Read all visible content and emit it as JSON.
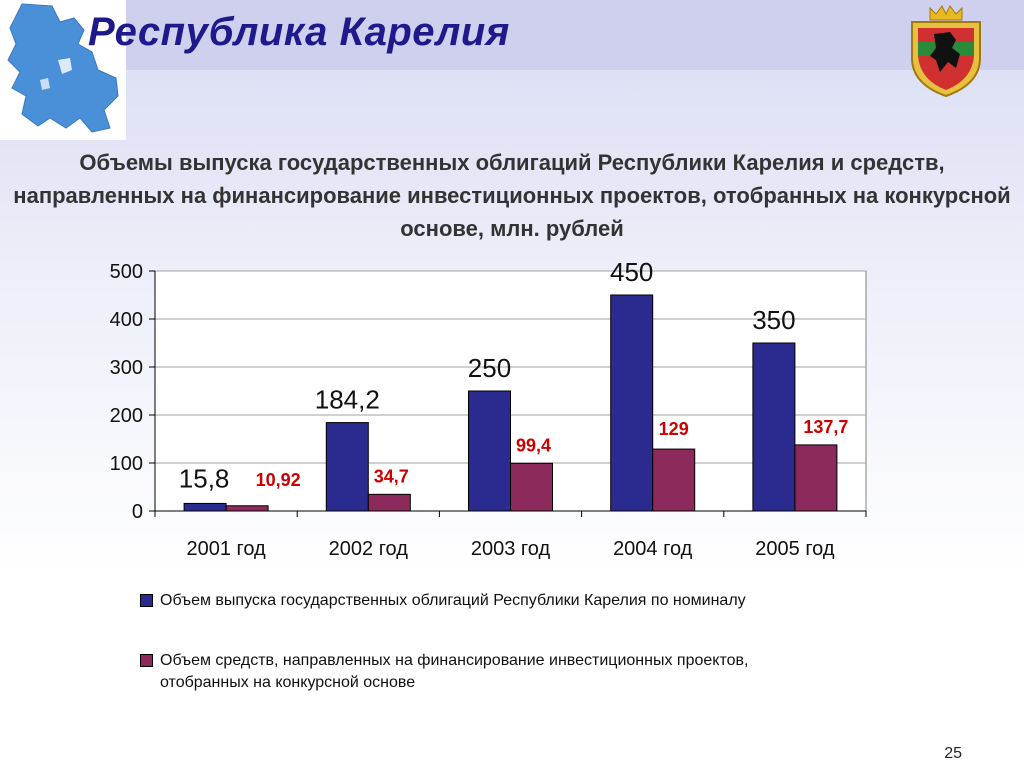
{
  "header": {
    "title": "Республика Карелия"
  },
  "chart_data": {
    "type": "bar",
    "title": "Объемы выпуска государственных облигаций Республики Карелия и средств, направленных на финансирование инвестиционных проектов, отобранных на конкурсной основе, млн. рублей",
    "categories": [
      "2001 год",
      "2002 год",
      "2003 год",
      "2004 год",
      "2005 год"
    ],
    "series": [
      {
        "name": "Объем выпуска государственных облигаций Республики Карелия по номиналу",
        "values": [
          15.8,
          184.2,
          250,
          450,
          350
        ],
        "labels": [
          "15,8",
          "184,2",
          "250",
          "450",
          "350"
        ],
        "color": "#2b2b8f"
      },
      {
        "name": "Объем средств, направленных на финансирование инвестиционных проектов, отобранных на конкурсной основе",
        "values": [
          10.92,
          34.7,
          99.4,
          129,
          137.7
        ],
        "labels": [
          "10,92",
          "34,7",
          "99,4",
          "129",
          "137,7"
        ],
        "color": "#8b2a5b"
      }
    ],
    "ylim": [
      0,
      500
    ],
    "yticks": [
      "0",
      "100",
      "200",
      "300",
      "400",
      "500"
    ],
    "grid": true,
    "legend": "bottom",
    "label_colors": {
      "series1": "#111111",
      "series2": "#cc0000"
    }
  },
  "footer": {
    "page_number": "25"
  }
}
